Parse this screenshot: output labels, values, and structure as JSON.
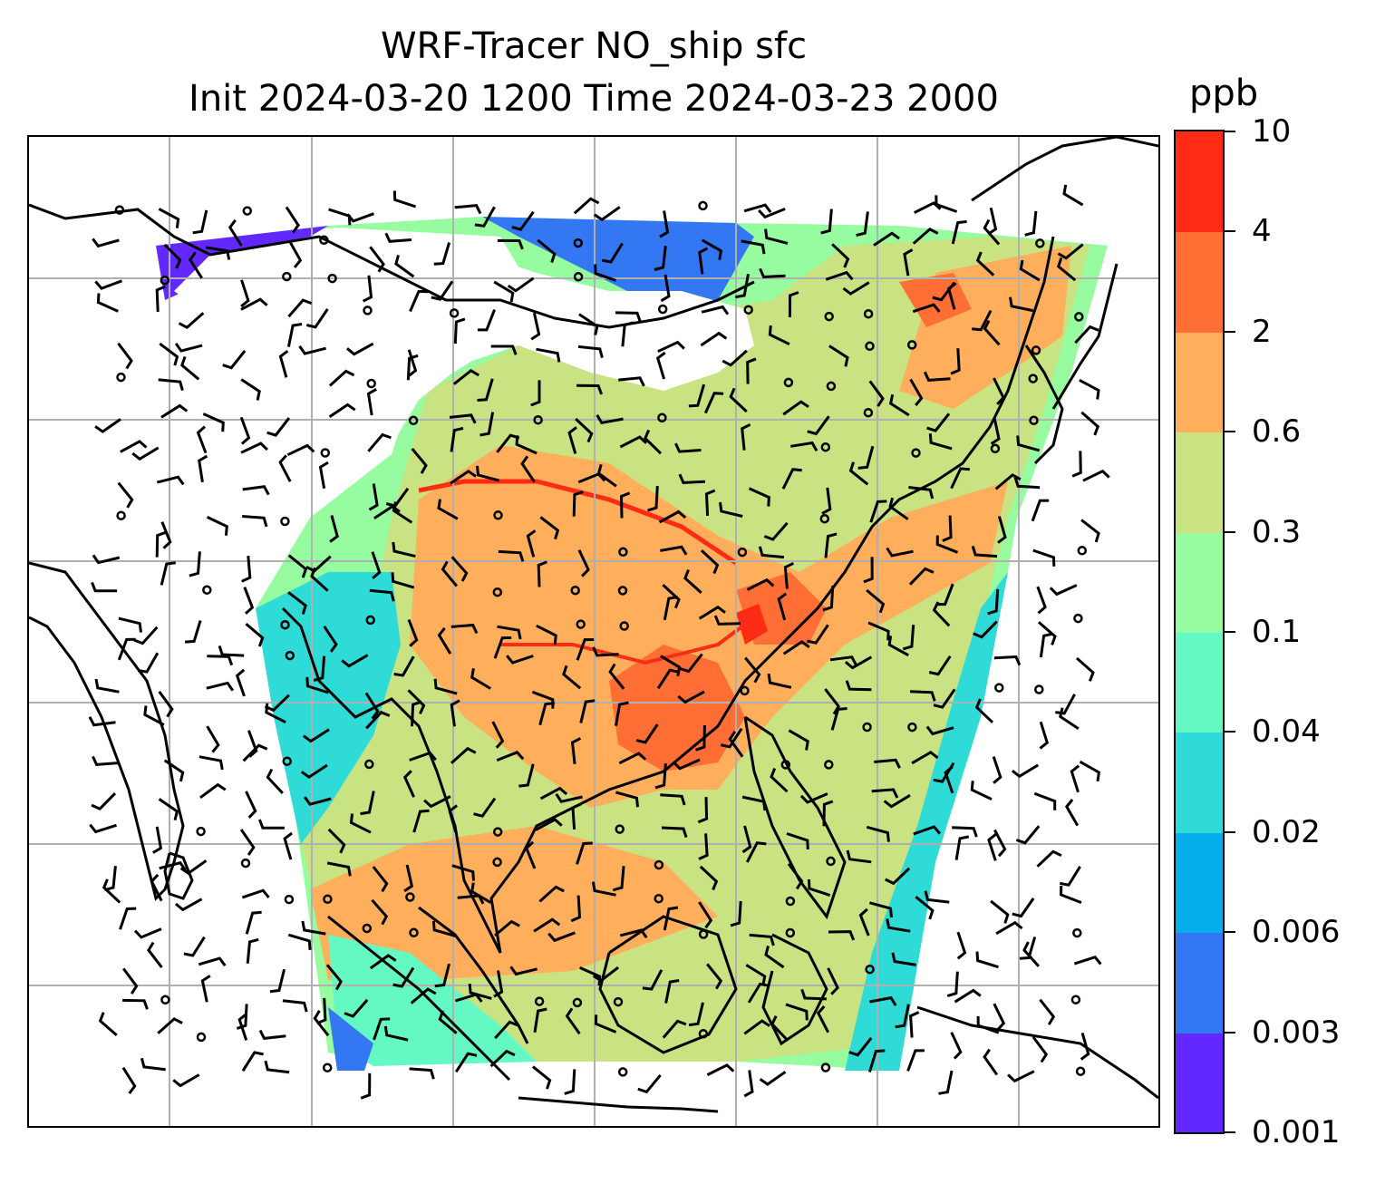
{
  "title": {
    "line1": "WRF-Tracer NO_ship sfc",
    "line2": "Init 2024-03-20 1200 Time 2024-03-23 2000"
  },
  "colorbar": {
    "unit": "ppb",
    "bins": [
      {
        "from": "0.001",
        "to": "0.003",
        "color": "#6328ff"
      },
      {
        "from": "0.003",
        "to": "0.006",
        "color": "#3377f2"
      },
      {
        "from": "0.006",
        "to": "0.02",
        "color": "#06aeec"
      },
      {
        "from": "0.02",
        "to": "0.04",
        "color": "#2edbd6"
      },
      {
        "from": "0.04",
        "to": "0.1",
        "color": "#64f9c2"
      },
      {
        "from": "0.1",
        "to": "0.3",
        "color": "#97fca0"
      },
      {
        "from": "0.3",
        "to": "0.6",
        "color": "#c9e282"
      },
      {
        "from": "0.6",
        "to": "2",
        "color": "#ffae5c"
      },
      {
        "from": "2",
        "to": "4",
        "color": "#ff6e35"
      },
      {
        "from": "4",
        "to": "10",
        "color": "#ff2b14"
      }
    ],
    "tick_labels": [
      "0.001",
      "0.003",
      "0.006",
      "0.02",
      "0.04",
      "0.1",
      "0.3",
      "0.6",
      "2",
      "4",
      "10"
    ]
  },
  "map": {
    "coastline_color": "#000000",
    "gridline_color": "#b0b0b0",
    "wind_barb_color": "#000000",
    "field_colors": {
      "background_low": "#97fca0",
      "moderate": "#c9e282",
      "high": "#ffae5c",
      "very_high": "#ff6e35",
      "peak": "#ff2b14",
      "edge_low": "#2edbd6",
      "edge_very_low": "#6328ff"
    }
  }
}
